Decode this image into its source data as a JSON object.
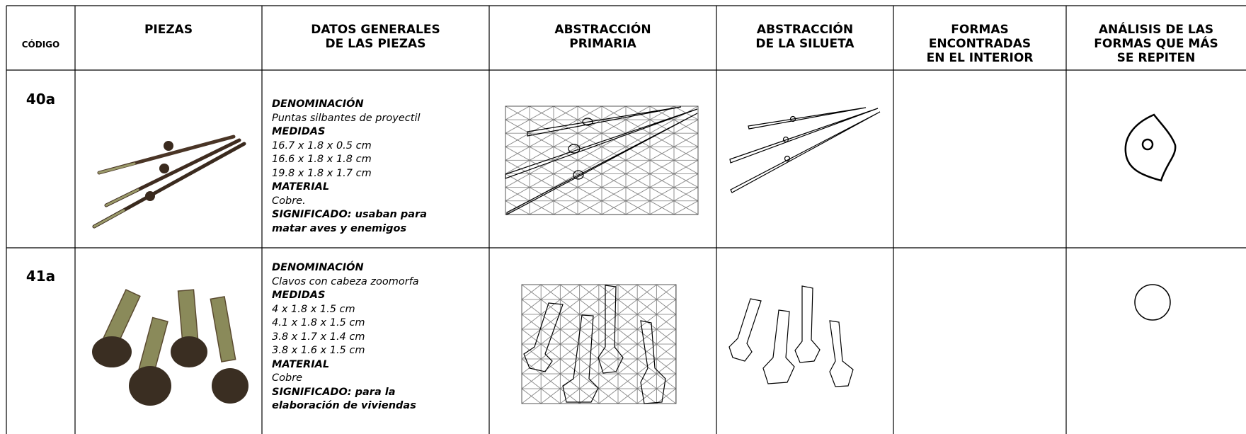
{
  "table": {
    "headers": [
      [
        "CÓDIGO"
      ],
      [
        "PIEZAS"
      ],
      [
        "DATOS GENERALES",
        "DE LAS PIEZAS"
      ],
      [
        "ABSTRACCIÓN",
        "PRIMARIA"
      ],
      [
        "ABSTRACCIÓN",
        "DE LA SILUETA"
      ],
      [
        "FORMAS",
        "ENCONTRADAS",
        "EN EL INTERIOR"
      ],
      [
        "ANÁLISIS DE LAS",
        "FORMAS QUE MÁS",
        "SE REPITEN"
      ]
    ],
    "rows": [
      {
        "code": "40a",
        "denominacion_label": "DENOMINACIÓN",
        "denominacion": "Puntas silbantes de proyectil",
        "medidas_label": "MEDIDAS",
        "medidas": [
          "16.7 x 1.8 x 0.5 cm",
          "16.6 x 1.8 x 1.8 cm",
          "19.8 x 1.8 x 1.7 cm"
        ],
        "material_label": "MATERIAL",
        "material": "Cobre.",
        "significado": "SIGNIFICADO: usaban para matar aves y enemigos"
      },
      {
        "code": "41a",
        "denominacion_label": "DENOMINACIÓN",
        "denominacion": "Clavos con cabeza zoomorfa",
        "medidas_label": "MEDIDAS",
        "medidas": [
          "4 x 1.8 x 1.5 cm",
          "4.1 x 1.8 x 1.5 cm",
          "3.8 x 1.7 x 1.4 cm",
          "3.8 x 1.6 x 1.5 cm"
        ],
        "material_label": "MATERIAL",
        "material": "Cobre",
        "significado": "SIGNIFICADO: para la elaboración de viviendas"
      }
    ]
  }
}
